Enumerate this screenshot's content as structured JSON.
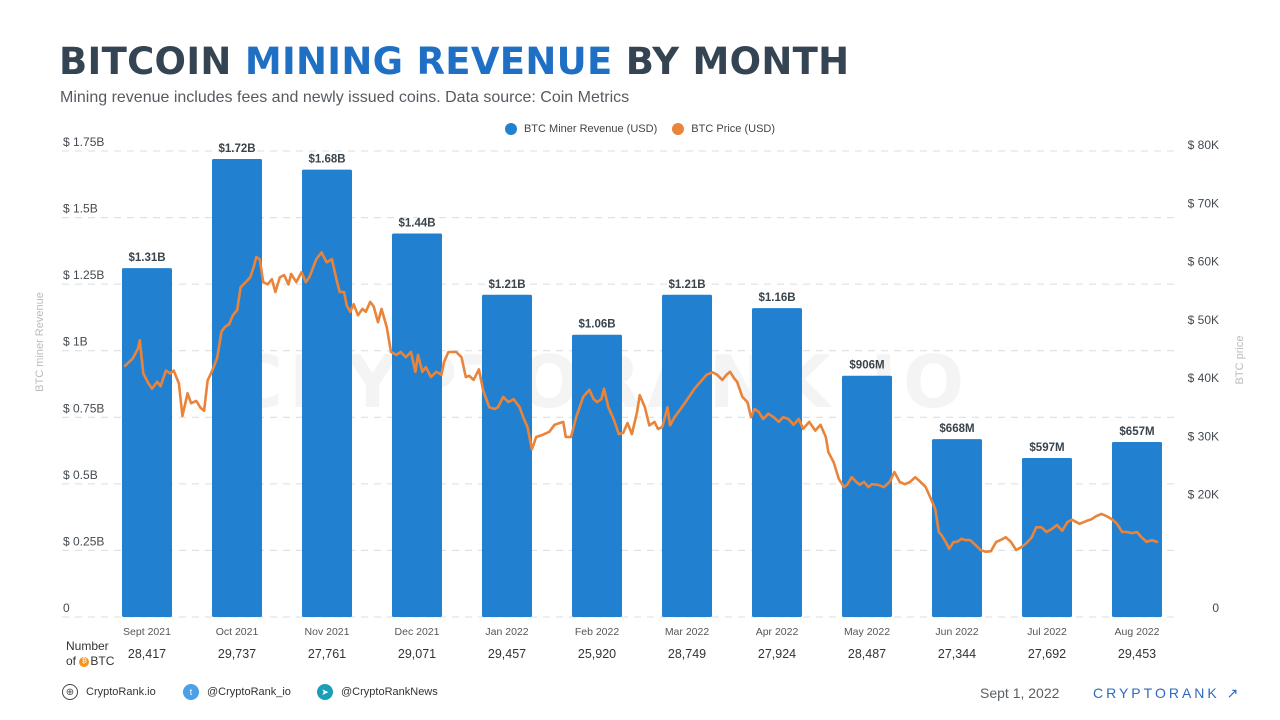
{
  "header": {
    "title_part1": "BITCOIN ",
    "title_accent": "MINING REVENUE",
    "title_part2": " BY MONTH",
    "subtitle": "Mining revenue includes fees and newly issued coins. Data source: Coin Metrics"
  },
  "watermark": "CRYPTORANK.IO",
  "colors": {
    "revenue": "#2181d0",
    "price": "#e9843a",
    "title": "#344452",
    "accent": "#1f6fc4",
    "brand": "#2b6ac0"
  },
  "chart_data": {
    "type": "bar",
    "title": "BITCOIN MINING REVENUE BY MONTH",
    "categories": [
      "Sept 2021",
      "Oct 2021",
      "Nov 2021",
      "Dec 2021",
      "Jan 2022",
      "Feb 2022",
      "Mar 2022",
      "Apr 2022",
      "May 2022",
      "Jun 2022",
      "Jul 2022",
      "Aug 2022"
    ],
    "legend": [
      "BTC Miner Revenue (USD)",
      "BTC Price (USD)"
    ],
    "legend_position": "top-center",
    "ylabel": "BTC miner Revenue",
    "y2label": "BTC price",
    "ylim": [
      0,
      1.75
    ],
    "y2lim": [
      0,
      80000
    ],
    "grid": true,
    "yticks": [
      0,
      0.25,
      0.5,
      0.75,
      1,
      1.25,
      1.5,
      1.75
    ],
    "ytick_labels": [
      "0",
      "$ 0.25B",
      "$ 0.5B",
      "$ 0.75B",
      "$ 1B",
      "$ 1.25B",
      "$ 1.5B",
      "$ 1.75B"
    ],
    "y2ticks": [
      0,
      20000,
      30000,
      40000,
      50000,
      60000,
      70000,
      80000
    ],
    "y2tick_labels": [
      "0",
      "$ 20K",
      "$ 30K",
      "$ 40K",
      "$ 50K",
      "$ 60K",
      "$ 70K",
      "$ 80K"
    ],
    "series": [
      {
        "name": "BTC Miner Revenue (USD)",
        "type": "bar",
        "unit": "billion USD",
        "values": [
          1.31,
          1.72,
          1.68,
          1.44,
          1.21,
          1.06,
          1.21,
          1.16,
          0.906,
          0.668,
          0.597,
          0.657
        ],
        "labels": [
          "$1.31B",
          "$1.72B",
          "$1.68B",
          "$1.44B",
          "$1.21B",
          "$1.06B",
          "$1.21B",
          "$1.16B",
          "$906M",
          "$668M",
          "$597M",
          "$657M"
        ]
      },
      {
        "name": "BTC Price (USD)",
        "type": "line",
        "x_unit": "month index (0 = start of Sept 2021, 12 = end of Aug 2022)",
        "points": [
          [
            0.0,
            43100
          ],
          [
            0.09,
            44400
          ],
          [
            0.15,
            46100
          ],
          [
            0.17,
            47500
          ],
          [
            0.21,
            41800
          ],
          [
            0.27,
            40100
          ],
          [
            0.31,
            39200
          ],
          [
            0.37,
            40400
          ],
          [
            0.41,
            39600
          ],
          [
            0.47,
            42300
          ],
          [
            0.52,
            41800
          ],
          [
            0.56,
            42300
          ],
          [
            0.62,
            40100
          ],
          [
            0.66,
            34500
          ],
          [
            0.72,
            38400
          ],
          [
            0.76,
            36700
          ],
          [
            0.82,
            37100
          ],
          [
            0.87,
            35900
          ],
          [
            0.91,
            35400
          ],
          [
            0.95,
            40600
          ],
          [
            1.01,
            42500
          ],
          [
            1.06,
            44500
          ],
          [
            1.11,
            49000
          ],
          [
            1.15,
            49800
          ],
          [
            1.2,
            50300
          ],
          [
            1.24,
            51800
          ],
          [
            1.29,
            52700
          ],
          [
            1.33,
            56600
          ],
          [
            1.39,
            57500
          ],
          [
            1.44,
            58300
          ],
          [
            1.48,
            60100
          ],
          [
            1.51,
            61800
          ],
          [
            1.55,
            61400
          ],
          [
            1.59,
            57500
          ],
          [
            1.64,
            57100
          ],
          [
            1.69,
            58000
          ],
          [
            1.73,
            55800
          ],
          [
            1.78,
            58300
          ],
          [
            1.83,
            58700
          ],
          [
            1.88,
            57100
          ],
          [
            1.91,
            58900
          ],
          [
            1.97,
            57500
          ],
          [
            2.03,
            59200
          ],
          [
            2.08,
            57500
          ],
          [
            2.12,
            58300
          ],
          [
            2.2,
            61400
          ],
          [
            2.26,
            62600
          ],
          [
            2.32,
            60900
          ],
          [
            2.38,
            61400
          ],
          [
            2.44,
            57500
          ],
          [
            2.47,
            55800
          ],
          [
            2.52,
            55800
          ],
          [
            2.55,
            53500
          ],
          [
            2.59,
            52400
          ],
          [
            2.63,
            53700
          ],
          [
            2.68,
            51800
          ],
          [
            2.73,
            52900
          ],
          [
            2.77,
            52400
          ],
          [
            2.82,
            54100
          ],
          [
            2.86,
            53300
          ],
          [
            2.91,
            50600
          ],
          [
            2.95,
            52900
          ],
          [
            3.01,
            49800
          ],
          [
            3.06,
            45500
          ],
          [
            3.12,
            45000
          ],
          [
            3.17,
            45500
          ],
          [
            3.23,
            44600
          ],
          [
            3.29,
            45500
          ],
          [
            3.34,
            42100
          ],
          [
            3.37,
            45000
          ],
          [
            3.42,
            42100
          ],
          [
            3.46,
            42900
          ],
          [
            3.52,
            41200
          ],
          [
            3.58,
            42100
          ],
          [
            3.64,
            41600
          ],
          [
            3.67,
            43800
          ],
          [
            3.72,
            45500
          ],
          [
            3.81,
            45500
          ],
          [
            3.87,
            44600
          ],
          [
            3.92,
            41200
          ],
          [
            3.96,
            41400
          ],
          [
            4.01,
            40700
          ],
          [
            4.07,
            42500
          ],
          [
            4.12,
            38900
          ],
          [
            4.19,
            36000
          ],
          [
            4.25,
            35700
          ],
          [
            4.29,
            36000
          ],
          [
            4.35,
            37800
          ],
          [
            4.41,
            36900
          ],
          [
            4.47,
            37400
          ],
          [
            4.54,
            36000
          ],
          [
            4.58,
            34300
          ],
          [
            4.63,
            32600
          ],
          [
            4.68,
            28800
          ],
          [
            4.73,
            30900
          ],
          [
            4.79,
            31200
          ],
          [
            4.88,
            31800
          ],
          [
            4.94,
            33000
          ],
          [
            5.0,
            33300
          ],
          [
            5.04,
            33500
          ],
          [
            5.07,
            30900
          ],
          [
            5.13,
            30900
          ],
          [
            5.19,
            34300
          ],
          [
            5.27,
            37800
          ],
          [
            5.34,
            39000
          ],
          [
            5.39,
            37400
          ],
          [
            5.43,
            36900
          ],
          [
            5.48,
            37400
          ],
          [
            5.51,
            39200
          ],
          [
            5.56,
            36000
          ],
          [
            5.62,
            34000
          ],
          [
            5.68,
            31400
          ],
          [
            5.73,
            31600
          ],
          [
            5.78,
            33300
          ],
          [
            5.83,
            31400
          ],
          [
            5.89,
            35200
          ],
          [
            5.92,
            38100
          ],
          [
            5.98,
            36000
          ],
          [
            6.03,
            32900
          ],
          [
            6.09,
            33500
          ],
          [
            6.13,
            32300
          ],
          [
            6.18,
            32600
          ],
          [
            6.24,
            36000
          ],
          [
            6.27,
            32900
          ],
          [
            6.32,
            34300
          ],
          [
            6.39,
            35700
          ],
          [
            6.47,
            37400
          ],
          [
            6.55,
            39200
          ],
          [
            6.62,
            40400
          ],
          [
            6.69,
            41600
          ],
          [
            6.76,
            42000
          ],
          [
            6.81,
            41600
          ],
          [
            6.87,
            40700
          ],
          [
            6.92,
            41600
          ],
          [
            6.96,
            42100
          ],
          [
            7.01,
            40900
          ],
          [
            7.04,
            40400
          ],
          [
            7.1,
            37800
          ],
          [
            7.16,
            36900
          ],
          [
            7.2,
            34300
          ],
          [
            7.24,
            35700
          ],
          [
            7.29,
            35200
          ],
          [
            7.34,
            34000
          ],
          [
            7.4,
            34900
          ],
          [
            7.46,
            34300
          ],
          [
            7.52,
            33500
          ],
          [
            7.57,
            34300
          ],
          [
            7.63,
            34000
          ],
          [
            7.69,
            33000
          ],
          [
            7.75,
            34000
          ],
          [
            7.8,
            32300
          ],
          [
            7.87,
            33500
          ],
          [
            7.94,
            32000
          ],
          [
            8.0,
            33000
          ],
          [
            8.06,
            30900
          ],
          [
            8.09,
            28300
          ],
          [
            8.15,
            26600
          ],
          [
            8.21,
            23700
          ],
          [
            8.27,
            22300
          ],
          [
            8.31,
            22800
          ],
          [
            8.36,
            24000
          ],
          [
            8.41,
            23200
          ],
          [
            8.45,
            22700
          ],
          [
            8.5,
            23200
          ],
          [
            8.55,
            22300
          ],
          [
            8.59,
            22800
          ],
          [
            8.66,
            22700
          ],
          [
            8.73,
            22300
          ],
          [
            8.8,
            23300
          ],
          [
            8.85,
            24900
          ],
          [
            8.91,
            23200
          ],
          [
            8.97,
            22800
          ],
          [
            9.03,
            23200
          ],
          [
            9.09,
            24000
          ],
          [
            9.15,
            23200
          ],
          [
            9.21,
            22300
          ],
          [
            9.26,
            20600
          ],
          [
            9.32,
            18500
          ],
          [
            9.36,
            14600
          ],
          [
            9.39,
            14100
          ],
          [
            9.44,
            12900
          ],
          [
            9.48,
            11700
          ],
          [
            9.53,
            12900
          ],
          [
            9.57,
            12900
          ],
          [
            9.62,
            13400
          ],
          [
            9.67,
            13200
          ],
          [
            9.72,
            13200
          ],
          [
            9.78,
            12400
          ],
          [
            9.84,
            11500
          ],
          [
            9.9,
            11200
          ],
          [
            9.96,
            11300
          ],
          [
            10.02,
            12900
          ],
          [
            10.07,
            13200
          ],
          [
            10.13,
            13700
          ],
          [
            10.19,
            12900
          ],
          [
            10.25,
            11500
          ],
          [
            10.31,
            12000
          ],
          [
            10.37,
            12700
          ],
          [
            10.43,
            13700
          ],
          [
            10.48,
            15400
          ],
          [
            10.54,
            15400
          ],
          [
            10.6,
            14600
          ],
          [
            10.66,
            15100
          ],
          [
            10.72,
            15800
          ],
          [
            10.78,
            14800
          ],
          [
            10.84,
            16300
          ],
          [
            10.89,
            16700
          ],
          [
            10.98,
            16000
          ],
          [
            11.06,
            16500
          ],
          [
            11.12,
            16800
          ],
          [
            11.17,
            17300
          ],
          [
            11.23,
            17700
          ],
          [
            11.29,
            17300
          ],
          [
            11.35,
            16800
          ],
          [
            11.41,
            16000
          ],
          [
            11.47,
            14600
          ],
          [
            11.52,
            14600
          ],
          [
            11.58,
            14400
          ],
          [
            11.64,
            14600
          ],
          [
            11.69,
            13700
          ],
          [
            11.75,
            12900
          ],
          [
            11.81,
            13200
          ],
          [
            11.87,
            12900
          ]
        ]
      }
    ],
    "btc_mined": {
      "label_line1": "Number",
      "label_line2": "of",
      "label_unit": "BTC",
      "values": [
        "28,417",
        "29,737",
        "27,761",
        "29,071",
        "29,457",
        "25,920",
        "28,749",
        "27,924",
        "28,487",
        "27,344",
        "27,692",
        "29,453"
      ]
    }
  },
  "footer": {
    "website": "CryptoRank.io",
    "twitter": "@CryptoRank_io",
    "telegram": "@CryptoRankNews",
    "date": "Sept 1, 2022",
    "brand": "CRYPTORANK",
    "brand_arrow": "↗"
  }
}
